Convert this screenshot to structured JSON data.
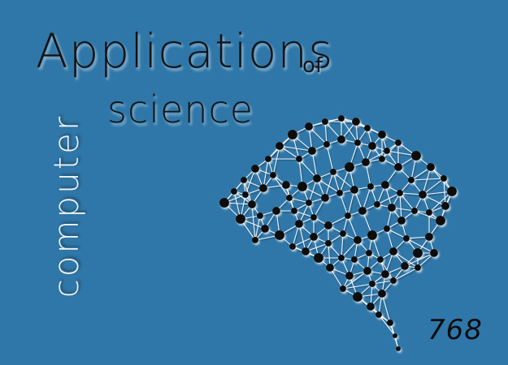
{
  "title": {
    "line1": "Applications",
    "connector": "of",
    "line2": "science",
    "vertical": "computer"
  },
  "page_number": "768",
  "colors": {
    "background": "#2f77a8",
    "title_text": "#111418",
    "vertical_text": "#eef2f6",
    "network_node": "#0a0a0a",
    "network_edge": "#ffffff"
  },
  "illustration": "brain-network"
}
